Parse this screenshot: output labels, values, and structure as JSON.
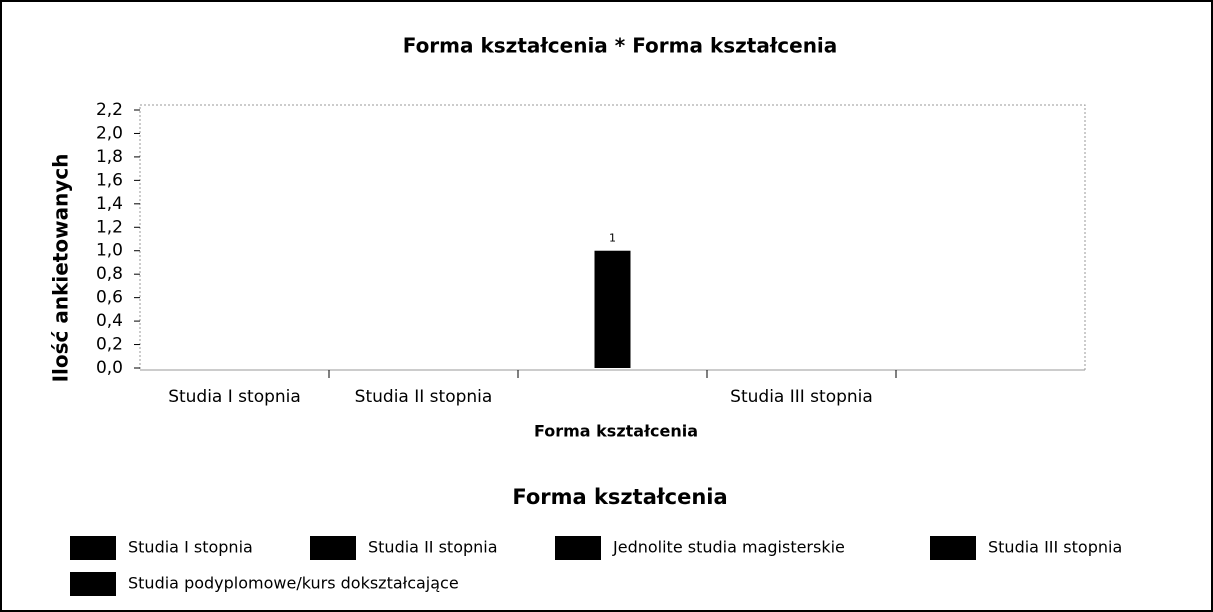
{
  "chart_data": {
    "type": "bar",
    "title": "Forma kształcenia * Forma kształcenia",
    "x_label": "Forma kształcenia",
    "y_label": "Ilość ankietowanych",
    "categories": [
      "Studia I stopnia",
      "Studia II stopnia",
      null,
      "Studia III stopnia",
      null
    ],
    "values": [
      0,
      0,
      1,
      0,
      0
    ],
    "color": "#000000",
    "ylim": [
      0,
      2.2
    ],
    "yticks": [
      {
        "value": 0,
        "label": "0,0"
      },
      {
        "value": 0.2,
        "label": "0,2"
      },
      {
        "value": 0.4,
        "label": "0,4"
      },
      {
        "value": 0.6,
        "label": "0,6"
      },
      {
        "value": 0.8,
        "label": "0,8"
      },
      {
        "value": 1,
        "label": "1,0"
      },
      {
        "value": 1.2,
        "label": "1,2"
      },
      {
        "value": 1.4,
        "label": "1,4"
      },
      {
        "value": 1.6,
        "label": "1,6"
      },
      {
        "value": 1.8,
        "label": "1,8"
      },
      {
        "value": 2,
        "label": "2,0"
      },
      {
        "value": 2.2,
        "label": "2,2"
      }
    ],
    "grid": false,
    "legend_title": "Forma kształcenia",
    "legend_entries": [
      "Studia I stopnia",
      "Studia II stopnia",
      "Jednolite studia magisterskie",
      "Studia III stopnia",
      "Studia podyplomowe/kurs dokształcające"
    ]
  }
}
